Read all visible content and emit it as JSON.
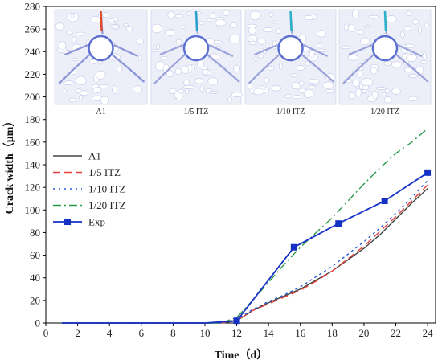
{
  "chart_data": {
    "type": "line",
    "xlabel": "Time（d）",
    "ylabel": "Crack width（μm）",
    "xlim": [
      0,
      24.5
    ],
    "ylim": [
      0,
      280
    ],
    "xticks": [
      "0",
      "2",
      "4",
      "6",
      "8",
      "10",
      "12",
      "14",
      "16",
      "18",
      "20",
      "22",
      "24"
    ],
    "yticks": [
      "0",
      "20",
      "40",
      "60",
      "80",
      "100",
      "120",
      "140",
      "160",
      "180",
      "200",
      "220",
      "240",
      "260",
      "280"
    ],
    "grid": false,
    "legend": "left",
    "series": [
      {
        "name": "A1",
        "style": "solid",
        "color": "#444444",
        "x": [
          1,
          2,
          3,
          4,
          5,
          6,
          7,
          8,
          9,
          10,
          11,
          12,
          13,
          14,
          15,
          16,
          17,
          18,
          19,
          20,
          21,
          22,
          23,
          24
        ],
        "y": [
          0,
          0,
          0,
          0,
          0,
          0,
          0,
          0,
          0,
          0,
          0,
          2,
          11,
          18,
          24,
          30,
          38,
          46,
          56,
          66,
          78,
          92,
          106,
          119
        ]
      },
      {
        "name": "1/5 ITZ",
        "style": "dashed",
        "color": "#e8403a",
        "x": [
          1,
          2,
          3,
          4,
          5,
          6,
          7,
          8,
          9,
          10,
          11,
          12,
          13,
          14,
          15,
          16,
          17,
          18,
          19,
          20,
          21,
          22,
          23,
          24
        ],
        "y": [
          0,
          0,
          0,
          0,
          0,
          0,
          0,
          0,
          0,
          0,
          0,
          2,
          11,
          17,
          23,
          29,
          37,
          46,
          57,
          68,
          81,
          94,
          108,
          122
        ]
      },
      {
        "name": "1/10 ITZ",
        "style": "dotted",
        "color": "#2a5ad6",
        "x": [
          1,
          2,
          3,
          4,
          5,
          6,
          7,
          8,
          9,
          10,
          11,
          12,
          13,
          14,
          15,
          16,
          17,
          18,
          19,
          20,
          21,
          22,
          23,
          24
        ],
        "y": [
          0,
          0,
          0,
          0,
          0,
          0,
          0,
          0,
          0,
          0,
          0,
          3,
          12,
          19,
          25,
          32,
          41,
          50,
          61,
          72,
          84,
          97,
          111,
          126
        ]
      },
      {
        "name": "1/20 ITZ",
        "style": "dashdot",
        "color": "#2a9a4a",
        "x": [
          1,
          2,
          3,
          4,
          5,
          6,
          7,
          8,
          9,
          10,
          11,
          12,
          13,
          14,
          15,
          16,
          17,
          18,
          19,
          20,
          21,
          22,
          23,
          24
        ],
        "y": [
          0,
          0,
          0,
          0,
          0,
          0,
          0,
          0,
          0,
          0,
          0,
          5,
          20,
          36,
          52,
          67,
          80,
          93,
          108,
          123,
          137,
          150,
          160,
          172
        ]
      },
      {
        "name": "Exp",
        "style": "solid-marker",
        "color": "#1531c4",
        "x": [
          1,
          4,
          7,
          10,
          12,
          15.6,
          18.4,
          21.3,
          24
        ],
        "y": [
          0,
          0,
          0,
          0,
          2,
          67,
          88,
          108,
          133
        ]
      }
    ],
    "inset_labels": [
      "A1",
      "1/5 ITZ",
      "1/10 ITZ",
      "1/20 ITZ"
    ]
  }
}
